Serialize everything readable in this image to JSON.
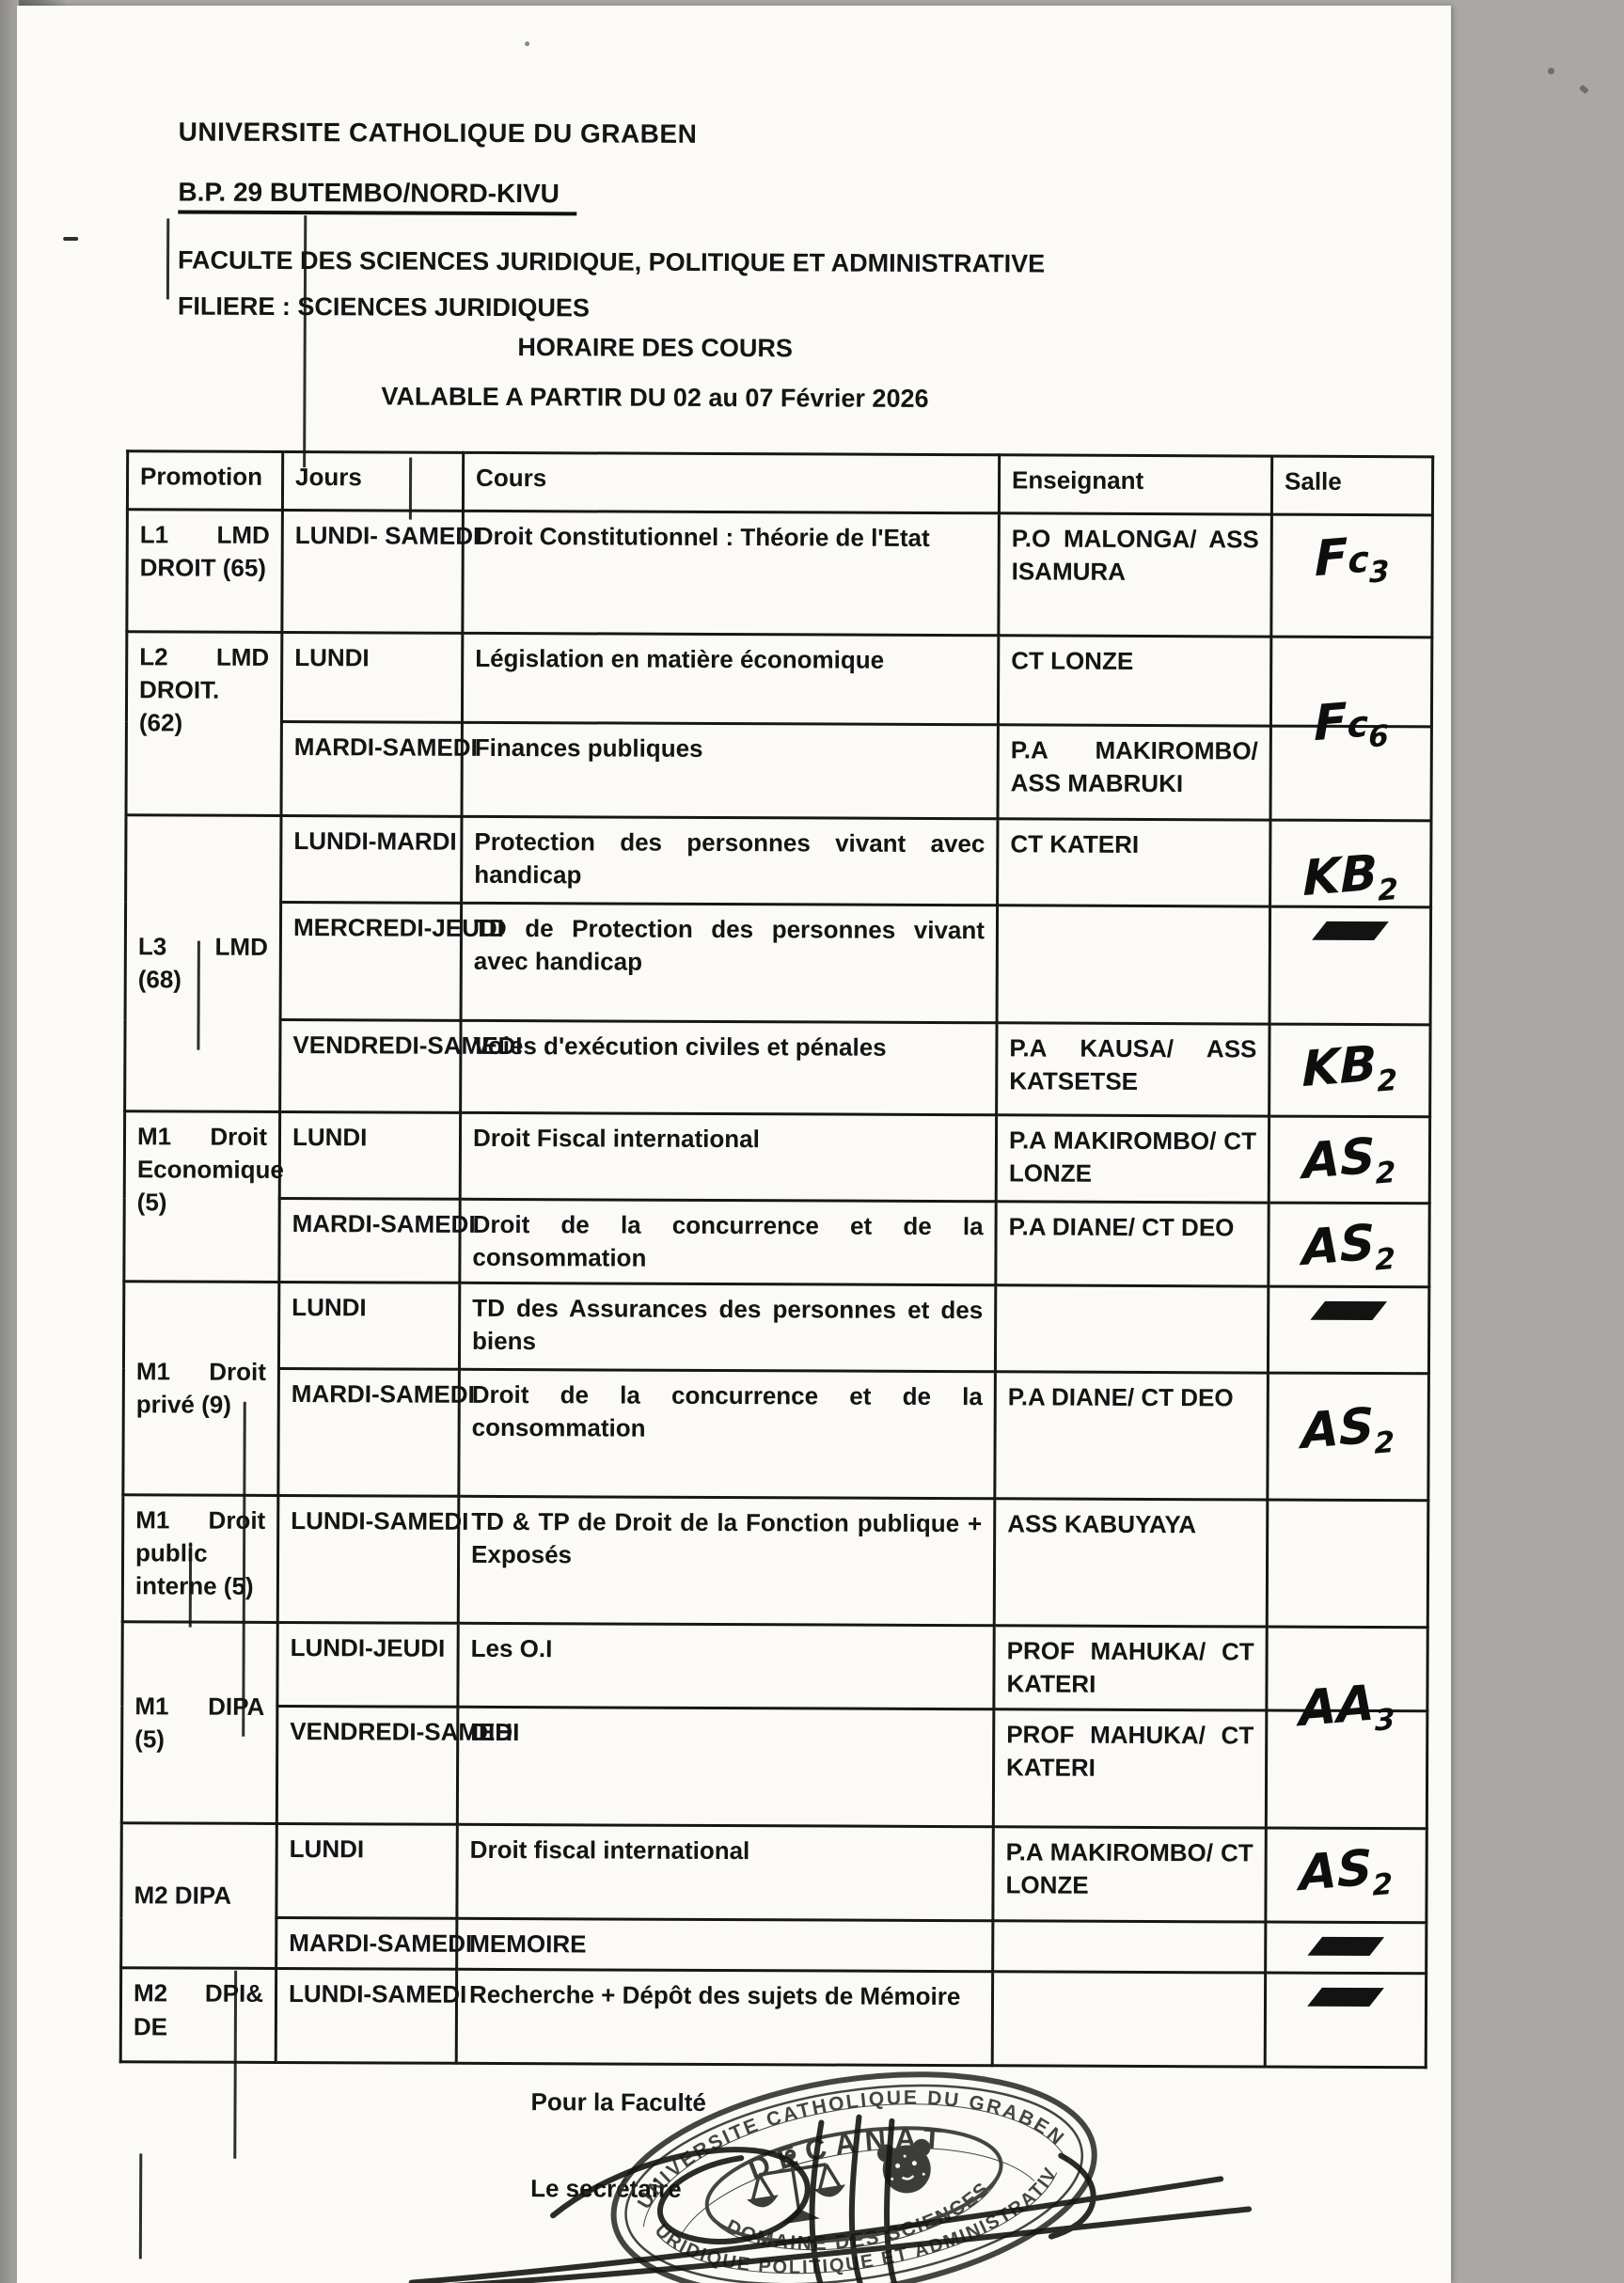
{
  "page": {
    "header": {
      "line1": "UNIVERSITE CATHOLIQUE DU GRABEN",
      "line2": "B.P. 29 BUTEMBO/NORD-KIVU",
      "line3": "FACULTE DES SCIENCES JURIDIQUE, POLITIQUE ET ADMINISTRATIVE",
      "line4": "FILIERE : SCIENCES JURIDIQUES"
    },
    "title": "HORAIRE DES COURS",
    "subtitle": "VALABLE A PARTIR DU 02 au 07 Février 2026"
  },
  "table": {
    "headers": [
      "Promotion",
      "Jours",
      "Cours",
      "Enseignant",
      "Salle"
    ],
    "groups": [
      {
        "promotion": "L1 LMD DROIT (65)",
        "valign": "top",
        "rows": [
          {
            "jours": "LUNDI- SAMEDI",
            "cours": "Droit Constitutionnel : Théorie de l'Etat",
            "enseignant": "P.O MALONGA/ ASS ISAMURA",
            "salle": {
              "text": "Fc3"
            }
          }
        ]
      },
      {
        "promotion": "L2 LMD DROIT. (62)",
        "valign": "top",
        "rows": [
          {
            "jours": "LUNDI",
            "cours": "Législation en matière économique",
            "enseignant": "CT LONZE",
            "salle": null
          },
          {
            "jours": "MARDI-SAMEDI",
            "cours": "Finances publiques",
            "enseignant": "P.A MAKIROMBO/ ASS MABRUKI",
            "salle": {
              "text": "Fc6",
              "offset": "up"
            }
          }
        ]
      },
      {
        "promotion": "L3 LMD (68)",
        "valign": "middle",
        "rows": [
          {
            "jours": "LUNDI-MARDI",
            "cours": "Protection des personnes vivant avec handicap",
            "enseignant": "CT KATERI",
            "salle": {
              "text": "KB2",
              "offset": "down"
            }
          },
          {
            "jours": "MERCREDI-JEUDI",
            "cours": "TD de Protection des personnes vivant avec handicap",
            "enseignant": "",
            "salle": {
              "mark": true
            }
          },
          {
            "jours": "VENDREDI-SAMEDI",
            "cours": "Voies d'exécution civiles et pénales",
            "enseignant": "P.A KAUSA/ ASS KATSETSE",
            "salle": {
              "text": "KB2"
            }
          }
        ]
      },
      {
        "promotion": "M1 Droit Economique (5)",
        "valign": "top",
        "rows": [
          {
            "jours": "LUNDI",
            "cours": "Droit Fiscal international",
            "enseignant": "P.A MAKIROMBO/ CT LONZE",
            "salle": {
              "text": "AS2"
            }
          },
          {
            "jours": "MARDI-SAMEDI",
            "cours": "Droit de la concurrence et de la consommation",
            "enseignant": "P.A DIANE/ CT DEO",
            "salle": {
              "text": "AS2"
            }
          }
        ]
      },
      {
        "promotion": "M1 Droit privé (9)",
        "valign": "middle",
        "rows": [
          {
            "jours": "LUNDI",
            "cours": "TD des Assurances des personnes et des biens",
            "enseignant": "",
            "salle": {
              "mark": true
            }
          },
          {
            "jours": "MARDI-SAMEDI",
            "cours": "Droit de la concurrence et de la consommation",
            "enseignant": "P.A DIANE/ CT DEO",
            "salle": {
              "text": "AS2",
              "offset": "down"
            }
          }
        ]
      },
      {
        "promotion": "M1 Droit public interne (5)",
        "valign": "top",
        "rows": [
          {
            "jours": "LUNDI-SAMEDI",
            "cours": "TD & TP de Droit de la Fonction publique + Exposés",
            "enseignant": "ASS KABUYAYA",
            "salle": null
          }
        ]
      },
      {
        "promotion": "M1 DIPA (5)",
        "valign": "middle",
        "rows": [
          {
            "jours": "LUNDI-JEUDI",
            "cours": "Les O.I",
            "enseignant": "PROF MAHUKA/ CT KATERI",
            "salle": null
          },
          {
            "jours": "VENDREDI-SAMEDI",
            "cours": "DIH",
            "enseignant": "PROF MAHUKA/ CT KATERI",
            "salle": {
              "text": "AA3",
              "offset": "up"
            }
          }
        ]
      },
      {
        "promotion": "M2 DIPA",
        "valign": "middle",
        "rows": [
          {
            "jours": "LUNDI",
            "cours": "Droit fiscal international",
            "enseignant": "P.A MAKIROMBO/ CT LONZE",
            "salle": {
              "text": "AS2"
            }
          },
          {
            "jours": "MARDI-SAMEDI",
            "cours": "MEMOIRE",
            "enseignant": "",
            "salle": {
              "mark": true
            }
          }
        ]
      },
      {
        "promotion": "M2 DPI& DE",
        "valign": "top",
        "rows": [
          {
            "jours": "LUNDI-SAMEDI",
            "cours": "Recherche + Dépôt des sujets de Mémoire",
            "enseignant": "",
            "salle": {
              "mark": true
            }
          }
        ]
      }
    ]
  },
  "footer": {
    "for_faculty": "Pour la Faculté",
    "secretary": "Le secrétaire",
    "stamp": {
      "top_arc": "UNIVERSITE CATHOLIQUE DU GRABEN",
      "decanat": "DECANAT",
      "bottom_arc_1": "DOMAINE DES SCIENCES",
      "bottom_arc_2": "JURIDIQUE POLITIQUE ET ADMINISTRATIVE",
      "icons": [
        "scales-of-justice",
        "leopard-head"
      ]
    }
  }
}
